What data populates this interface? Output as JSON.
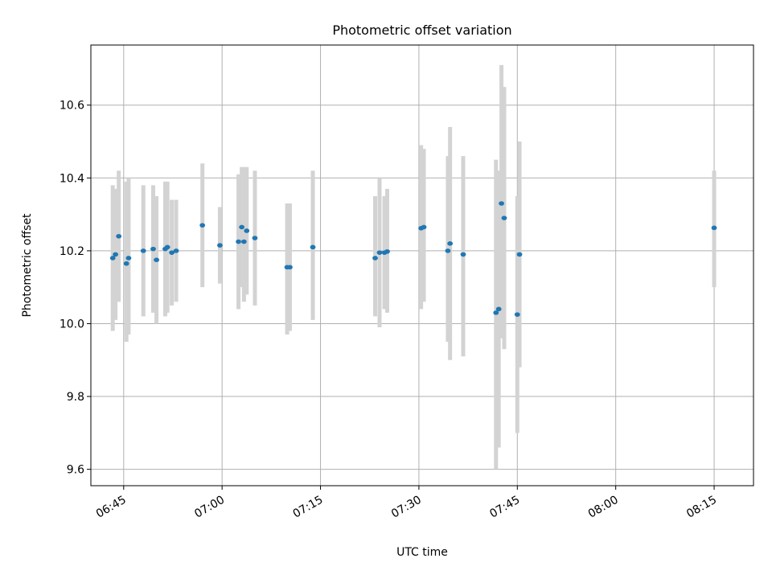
{
  "chart_data": {
    "type": "scatter",
    "title": "Photometric offset variation",
    "xlabel": "UTC time",
    "ylabel": "Photometric offset",
    "grid": true,
    "legend": "none",
    "x_time_range": [
      "06:40",
      "08:21"
    ],
    "ylim": [
      9.555,
      10.765
    ],
    "x_ticks": [
      "06:45",
      "07:00",
      "07:15",
      "07:30",
      "07:45",
      "08:00",
      "08:15"
    ],
    "y_ticks": [
      "9.6",
      "9.8",
      "10.0",
      "10.2",
      "10.4",
      "10.6"
    ],
    "colors": {
      "point": "#1f77b4",
      "errorbar": "#d3d3d3",
      "grid": "#b0b0b0"
    },
    "points": [
      {
        "time": "06:43:20",
        "y": 10.18,
        "low": 9.98,
        "high": 10.38
      },
      {
        "time": "06:43:45",
        "y": 10.19,
        "low": 10.01,
        "high": 10.37
      },
      {
        "time": "06:44:15",
        "y": 10.24,
        "low": 10.06,
        "high": 10.42
      },
      {
        "time": "06:45:25",
        "y": 10.165,
        "low": 9.95,
        "high": 10.39
      },
      {
        "time": "06:45:45",
        "y": 10.18,
        "low": 9.97,
        "high": 10.4
      },
      {
        "time": "06:48:00",
        "y": 10.2,
        "low": 10.02,
        "high": 10.38
      },
      {
        "time": "06:49:30",
        "y": 10.205,
        "low": 10.03,
        "high": 10.38
      },
      {
        "time": "06:50:00",
        "y": 10.175,
        "low": 10.0,
        "high": 10.35
      },
      {
        "time": "06:51:20",
        "y": 10.205,
        "low": 10.02,
        "high": 10.39
      },
      {
        "time": "06:51:40",
        "y": 10.21,
        "low": 10.03,
        "high": 10.39
      },
      {
        "time": "06:52:20",
        "y": 10.195,
        "low": 10.05,
        "high": 10.34
      },
      {
        "time": "06:53:00",
        "y": 10.2,
        "low": 10.06,
        "high": 10.34
      },
      {
        "time": "06:57:00",
        "y": 10.27,
        "low": 10.1,
        "high": 10.44
      },
      {
        "time": "06:59:40",
        "y": 10.215,
        "low": 10.11,
        "high": 10.32
      },
      {
        "time": "07:02:30",
        "y": 10.225,
        "low": 10.04,
        "high": 10.41
      },
      {
        "time": "07:03:00",
        "y": 10.265,
        "low": 10.1,
        "high": 10.43
      },
      {
        "time": "07:03:20",
        "y": 10.225,
        "low": 10.06,
        "high": 10.43
      },
      {
        "time": "07:03:45",
        "y": 10.255,
        "low": 10.08,
        "high": 10.43
      },
      {
        "time": "07:05:00",
        "y": 10.235,
        "low": 10.05,
        "high": 10.42
      },
      {
        "time": "07:09:55",
        "y": 10.155,
        "low": 9.97,
        "high": 10.33
      },
      {
        "time": "07:10:20",
        "y": 10.155,
        "low": 9.98,
        "high": 10.33
      },
      {
        "time": "07:13:50",
        "y": 10.21,
        "low": 10.01,
        "high": 10.42
      },
      {
        "time": "07:23:20",
        "y": 10.18,
        "low": 10.02,
        "high": 10.35
      },
      {
        "time": "07:24:00",
        "y": 10.195,
        "low": 9.99,
        "high": 10.4
      },
      {
        "time": "07:24:45",
        "y": 10.195,
        "low": 10.04,
        "high": 10.35
      },
      {
        "time": "07:25:10",
        "y": 10.198,
        "low": 10.03,
        "high": 10.37
      },
      {
        "time": "07:30:20",
        "y": 10.262,
        "low": 10.04,
        "high": 10.49
      },
      {
        "time": "07:30:45",
        "y": 10.265,
        "low": 10.06,
        "high": 10.48
      },
      {
        "time": "07:34:25",
        "y": 10.2,
        "low": 9.95,
        "high": 10.46
      },
      {
        "time": "07:34:45",
        "y": 10.22,
        "low": 9.9,
        "high": 10.54
      },
      {
        "time": "07:36:45",
        "y": 10.19,
        "low": 9.91,
        "high": 10.46
      },
      {
        "time": "07:41:45",
        "y": 10.03,
        "low": 9.6,
        "high": 10.45
      },
      {
        "time": "07:42:10",
        "y": 10.04,
        "low": 9.66,
        "high": 10.42
      },
      {
        "time": "07:42:35",
        "y": 10.33,
        "low": 9.96,
        "high": 10.71
      },
      {
        "time": "07:43:00",
        "y": 10.29,
        "low": 9.93,
        "high": 10.65
      },
      {
        "time": "07:45:00",
        "y": 10.025,
        "low": 9.7,
        "high": 10.35
      },
      {
        "time": "07:45:20",
        "y": 10.19,
        "low": 9.88,
        "high": 10.5
      },
      {
        "time": "08:15:00",
        "y": 10.263,
        "low": 10.1,
        "high": 10.42
      }
    ]
  }
}
